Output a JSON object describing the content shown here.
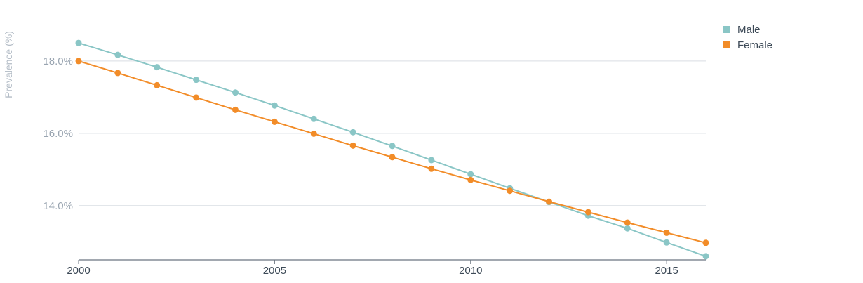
{
  "chart_data": {
    "type": "line",
    "title": "",
    "xlabel": "",
    "ylabel": "Prevalence (%)",
    "x": [
      2000,
      2001,
      2002,
      2003,
      2004,
      2005,
      2006,
      2007,
      2008,
      2009,
      2010,
      2011,
      2012,
      2013,
      2014,
      2015,
      2016
    ],
    "x_ticks": [
      2000,
      2005,
      2010,
      2015
    ],
    "x_tick_labels": [
      "2000",
      "2005",
      "2010",
      "2015"
    ],
    "y_ticks": [
      14,
      16,
      18
    ],
    "y_tick_labels": [
      "14.0%",
      "16.0%",
      "18.0%"
    ],
    "xlim": [
      2000,
      2016
    ],
    "ylim": [
      12.5,
      19.3
    ],
    "grid": "horizontal",
    "legend_position": "top-right",
    "series": [
      {
        "name": "Male",
        "color": "#8ac6c6",
        "values": [
          18.5,
          18.17,
          17.83,
          17.48,
          17.13,
          16.77,
          16.4,
          16.03,
          15.65,
          15.26,
          14.87,
          14.48,
          14.1,
          13.72,
          13.37,
          12.98,
          12.6
        ]
      },
      {
        "name": "Female",
        "color": "#f28c28",
        "values": [
          18.0,
          17.67,
          17.33,
          16.99,
          16.65,
          16.32,
          15.99,
          15.66,
          15.34,
          15.02,
          14.71,
          14.41,
          14.11,
          13.82,
          13.53,
          13.25,
          12.97
        ]
      }
    ]
  }
}
